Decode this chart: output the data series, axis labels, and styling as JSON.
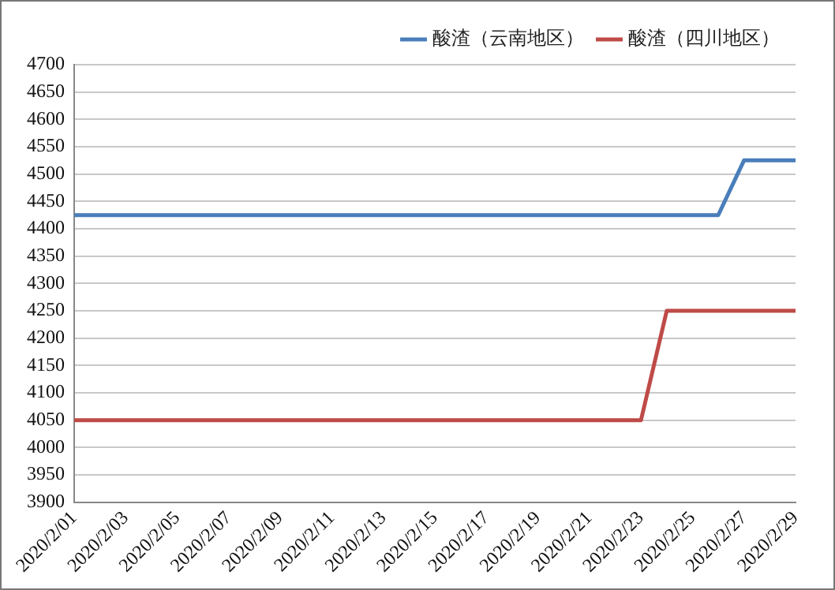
{
  "chart_data": {
    "type": "line",
    "categories": [
      "2020/2/01",
      null,
      "2020/2/03",
      null,
      "2020/2/05",
      null,
      "2020/2/07",
      null,
      "2020/2/09",
      null,
      "2020/2/11",
      null,
      "2020/2/13",
      null,
      "2020/2/15",
      null,
      "2020/2/17",
      null,
      "2020/2/19",
      null,
      "2020/2/21",
      null,
      "2020/2/23",
      null,
      "2020/2/25",
      null,
      "2020/2/27",
      null,
      "2020/2/29"
    ],
    "series": [
      {
        "name": "酸渣（云南地区）",
        "color": "#4a7ebb",
        "values": [
          4425,
          4425,
          4425,
          4425,
          4425,
          4425,
          4425,
          4425,
          4425,
          4425,
          4425,
          4425,
          4425,
          4425,
          4425,
          4425,
          4425,
          4425,
          4425,
          4425,
          4425,
          4425,
          4425,
          4425,
          4425,
          4425,
          4525,
          4525,
          4525
        ]
      },
      {
        "name": "酸渣（四川地区）",
        "color": "#be4b48",
        "values": [
          4050,
          4050,
          4050,
          4050,
          4050,
          4050,
          4050,
          4050,
          4050,
          4050,
          4050,
          4050,
          4050,
          4050,
          4050,
          4050,
          4050,
          4050,
          4050,
          4050,
          4050,
          4050,
          4050,
          4250,
          4250,
          4250,
          4250,
          4250,
          4250
        ]
      }
    ],
    "ylim": [
      3900,
      4700
    ],
    "yticks": [
      3900,
      3950,
      4000,
      4050,
      4100,
      4150,
      4200,
      4250,
      4300,
      4350,
      4400,
      4450,
      4500,
      4550,
      4600,
      4650,
      4700
    ],
    "grid": "y",
    "legend": "top right",
    "marker": "none",
    "line_style": "solid"
  }
}
